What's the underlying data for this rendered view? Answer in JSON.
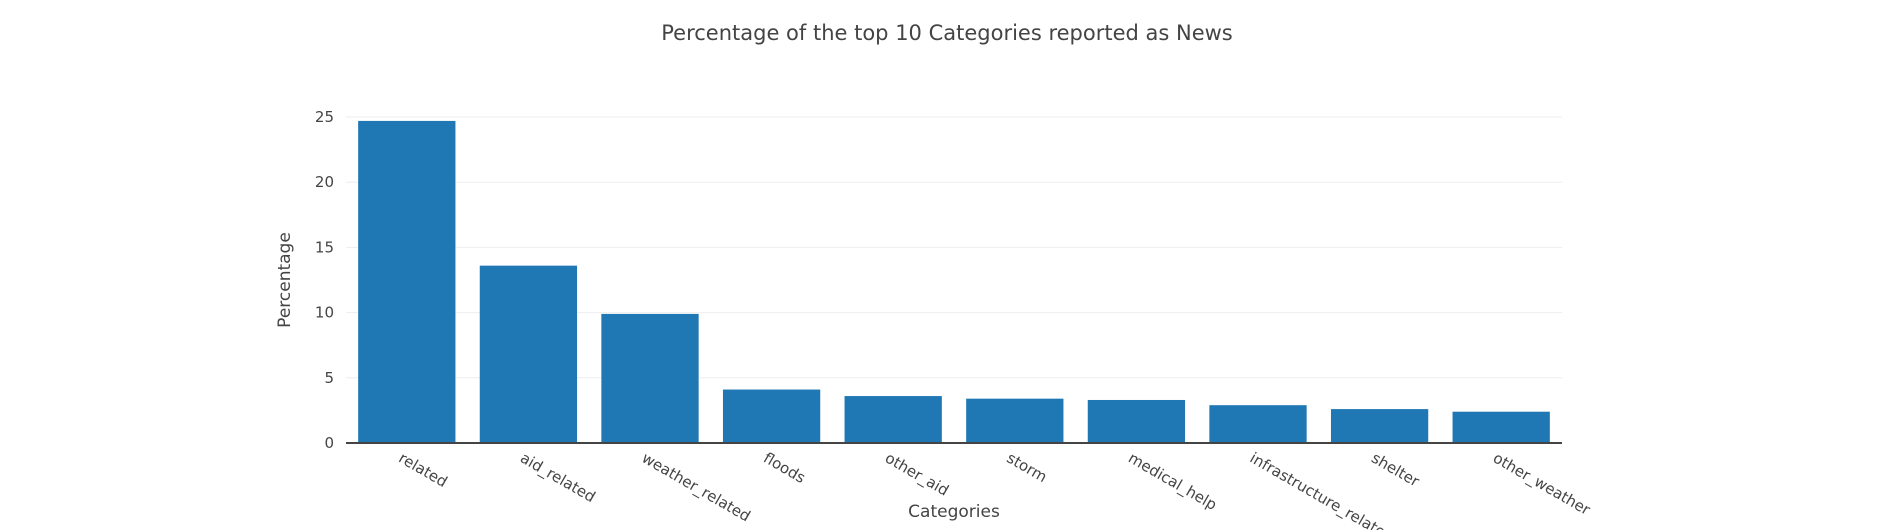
{
  "chart_data": {
    "type": "bar",
    "title": "Percentage of the top 10 Categories reported as News",
    "xlabel": "Categories",
    "ylabel": "Percentage",
    "categories": [
      "related",
      "aid_related",
      "weather_related",
      "floods",
      "other_aid",
      "storm",
      "medical_help",
      "infrastructure_related",
      "shelter",
      "other_weather"
    ],
    "values": [
      24.7,
      13.6,
      9.9,
      4.1,
      3.6,
      3.4,
      3.3,
      2.9,
      2.6,
      2.4
    ],
    "ylim": [
      0,
      25
    ],
    "yticks": [
      0,
      5,
      10,
      15,
      20,
      25
    ],
    "grid": true,
    "bar_color": "#1f77b4",
    "gridline_color": "#eeeeee",
    "axis_line_color": "#444444"
  }
}
